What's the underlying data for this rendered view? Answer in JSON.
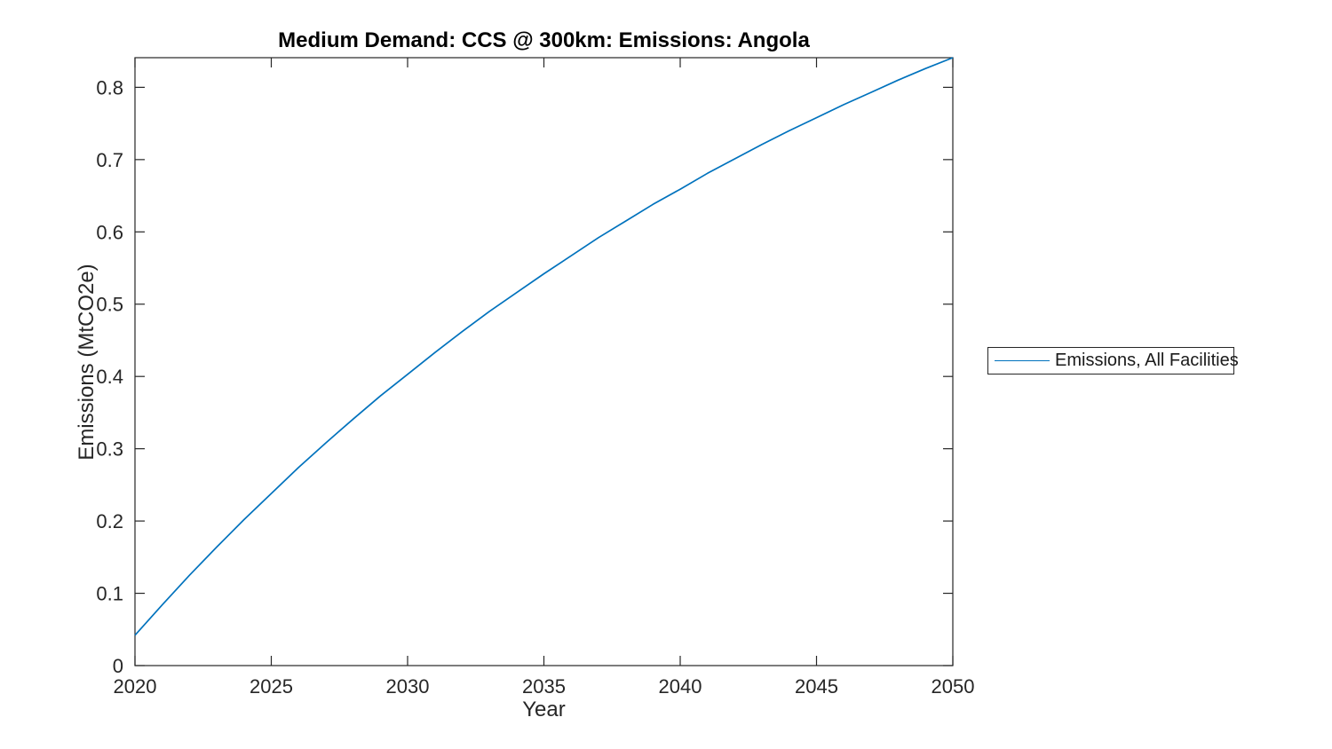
{
  "figure": {
    "background": "#ffffff"
  },
  "legend": {
    "position": "right-outside",
    "items": [
      {
        "label": "Emissions, All Facilities",
        "color": "#0072BD"
      }
    ]
  },
  "chart_data": {
    "type": "line",
    "title": "Medium Demand: CCS @ 300km: Emissions: Angola",
    "xlabel": "Year",
    "ylabel": "Emissions (MtCO2e)",
    "xlim": [
      2020,
      2050
    ],
    "ylim": [
      0,
      0.841
    ],
    "xticks": [
      2020,
      2025,
      2030,
      2035,
      2040,
      2045,
      2050
    ],
    "xtick_labels": [
      "2020",
      "2025",
      "2030",
      "2035",
      "2040",
      "2045",
      "2050"
    ],
    "yticks": [
      0,
      0.1,
      0.2,
      0.3,
      0.4,
      0.5,
      0.6,
      0.7,
      0.8
    ],
    "ytick_labels": [
      "0",
      "0.1",
      "0.2",
      "0.3",
      "0.4",
      "0.5",
      "0.6",
      "0.7",
      "0.8"
    ],
    "grid": false,
    "box": true,
    "tick_direction": "in",
    "axis_color": "#262626",
    "legend_position": "right-outside",
    "series": [
      {
        "name": "Emissions, All Facilities",
        "color": "#0072BD",
        "x": [
          2020,
          2021,
          2022,
          2023,
          2024,
          2025,
          2026,
          2027,
          2028,
          2029,
          2030,
          2031,
          2032,
          2033,
          2034,
          2035,
          2036,
          2037,
          2038,
          2039,
          2040,
          2041,
          2042,
          2043,
          2044,
          2045,
          2046,
          2047,
          2048,
          2049,
          2050
        ],
        "y": [
          0.042,
          0.084,
          0.125,
          0.164,
          0.202,
          0.238,
          0.274,
          0.308,
          0.341,
          0.373,
          0.403,
          0.433,
          0.462,
          0.49,
          0.516,
          0.542,
          0.567,
          0.592,
          0.615,
          0.638,
          0.659,
          0.681,
          0.701,
          0.721,
          0.74,
          0.758,
          0.776,
          0.793,
          0.81,
          0.826,
          0.841
        ]
      }
    ]
  }
}
